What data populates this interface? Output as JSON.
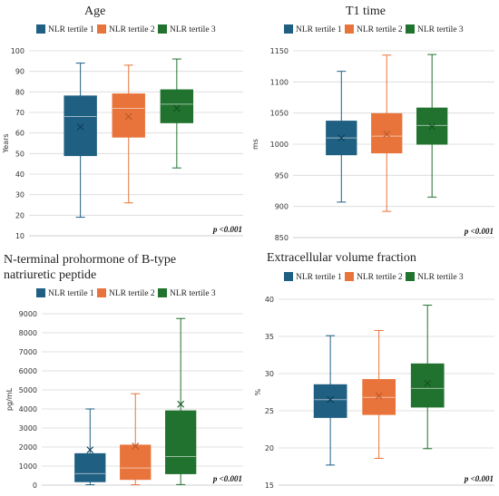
{
  "colors": {
    "tertile1": "#1f5f82",
    "tertile2": "#e8743b",
    "tertile3": "#21722e",
    "grid": "#d9d9d9",
    "axis": "#bfbfbf"
  },
  "chart_data": [
    {
      "type": "box",
      "title": [
        "Age"
      ],
      "ylabel": "Years",
      "ylim": [
        10,
        100
      ],
      "ticks": [
        10,
        20,
        30,
        40,
        50,
        60,
        70,
        80,
        90,
        100
      ],
      "pvalue": "p <0.001",
      "series": [
        {
          "name": "NLR tertile 1",
          "whisker_low": 19,
          "q1": 49,
          "median": 68,
          "q3": 78,
          "whisker_high": 94,
          "mean": 63
        },
        {
          "name": "NLR tertile 2",
          "whisker_low": 26,
          "q1": 58,
          "median": 72,
          "q3": 79,
          "whisker_high": 93,
          "mean": 68
        },
        {
          "name": "NLR tertile 3",
          "whisker_low": 43,
          "q1": 65,
          "median": 74,
          "q3": 81,
          "whisker_high": 96,
          "mean": 72
        }
      ]
    },
    {
      "type": "box",
      "title": [
        "T1 time"
      ],
      "ylabel": "ms",
      "ylim": [
        850,
        1150
      ],
      "ticks": [
        850,
        900,
        950,
        1000,
        1050,
        1100,
        1150
      ],
      "pvalue": "p <0.001",
      "series": [
        {
          "name": "NLR tertile 1",
          "whisker_low": 907,
          "q1": 983,
          "median": 1010,
          "q3": 1037,
          "whisker_high": 1117,
          "mean": 1010
        },
        {
          "name": "NLR tertile 2",
          "whisker_low": 892,
          "q1": 986,
          "median": 1013,
          "q3": 1049,
          "whisker_high": 1143,
          "mean": 1016
        },
        {
          "name": "NLR tertile 3",
          "whisker_low": 915,
          "q1": 1000,
          "median": 1030,
          "q3": 1058,
          "whisker_high": 1144,
          "mean": 1028
        }
      ]
    },
    {
      "type": "box",
      "title": [
        "N-terminal prohormone of B-type",
        "natriuretic peptide"
      ],
      "ylabel": "pg/mL",
      "ylim": [
        0,
        9000
      ],
      "ticks": [
        0,
        1000,
        2000,
        3000,
        4000,
        5000,
        6000,
        7000,
        8000,
        9000
      ],
      "pvalue": "p <0.001",
      "series": [
        {
          "name": "NLR tertile 1",
          "whisker_low": 20,
          "q1": 180,
          "median": 600,
          "q3": 1650,
          "whisker_high": 4000,
          "mean": 1850
        },
        {
          "name": "NLR tertile 2",
          "whisker_low": 20,
          "q1": 300,
          "median": 900,
          "q3": 2100,
          "whisker_high": 4800,
          "mean": 2050
        },
        {
          "name": "NLR tertile 3",
          "whisker_low": 30,
          "q1": 600,
          "median": 1500,
          "q3": 3900,
          "whisker_high": 8750,
          "mean": 4250
        }
      ]
    },
    {
      "type": "box",
      "title": [
        "Extracellular volume fraction"
      ],
      "ylabel": "%",
      "ylim": [
        15,
        40
      ],
      "ticks": [
        15,
        20,
        25,
        30,
        35,
        40
      ],
      "pvalue": "p <0.001",
      "series": [
        {
          "name": "NLR tertile 1",
          "whisker_low": 17.7,
          "q1": 24.1,
          "median": 26.5,
          "q3": 28.5,
          "whisker_high": 35.1,
          "mean": 26.5
        },
        {
          "name": "NLR tertile 2",
          "whisker_low": 18.6,
          "q1": 24.5,
          "median": 26.8,
          "q3": 29.2,
          "whisker_high": 35.8,
          "mean": 27.0
        },
        {
          "name": "NLR tertile 3",
          "whisker_low": 19.9,
          "q1": 25.5,
          "median": 28.0,
          "q3": 31.3,
          "whisker_high": 39.2,
          "mean": 28.7
        }
      ]
    }
  ]
}
